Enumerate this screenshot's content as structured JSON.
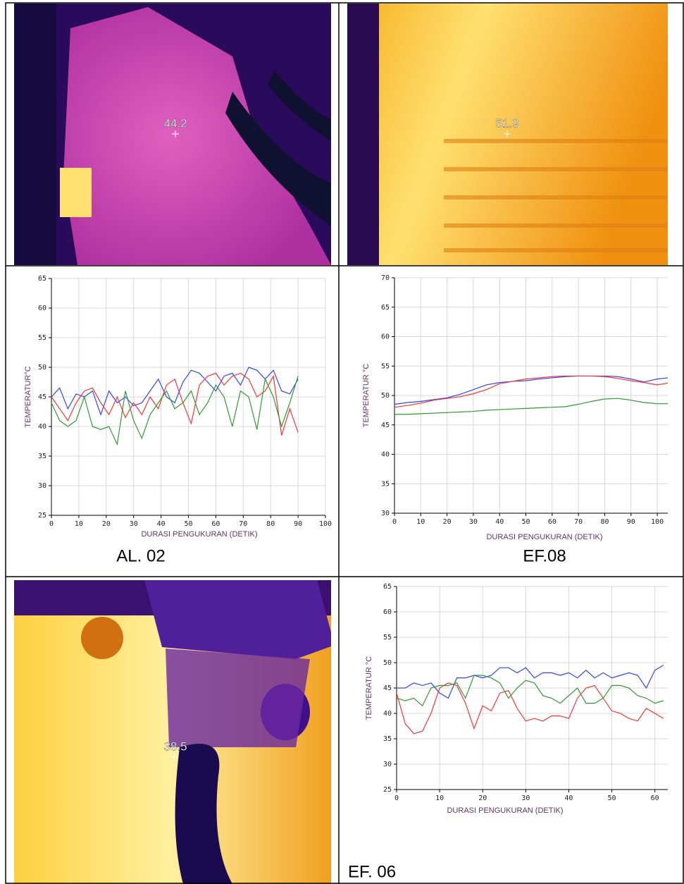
{
  "panels": {
    "images": [
      {
        "label": "44.2"
      },
      {
        "label": "51.9"
      },
      {
        "label": "38.5"
      }
    ]
  },
  "chart_data": [
    {
      "type": "line",
      "caption": "AL. 02",
      "x_label": "DURASI PENGUKURAN (DETIK)",
      "y_label": "TEMPERATUR°C",
      "x": [
        0,
        3,
        6,
        9,
        12,
        15,
        18,
        21,
        24,
        27,
        30,
        33,
        36,
        39,
        42,
        45,
        48,
        51,
        54,
        57,
        60,
        63,
        66,
        69,
        72,
        75,
        78,
        81,
        84,
        87,
        90
      ],
      "series": [
        {
          "color": "#3344ff",
          "values": [
            45,
            46.5,
            43,
            45.5,
            45,
            46,
            42,
            46,
            44,
            45,
            43.5,
            44,
            46,
            48,
            45,
            44,
            47.5,
            49.5,
            49,
            47.5,
            46,
            48.5,
            49,
            47,
            50,
            49.5,
            48,
            49.5,
            46,
            45.5,
            48
          ]
        },
        {
          "color": "#ff3333",
          "values": [
            45,
            43,
            41,
            44,
            46,
            46.5,
            44,
            42,
            45,
            41.5,
            44,
            42,
            45,
            43,
            47,
            48,
            44,
            40.5,
            47,
            48.5,
            49,
            47,
            48.5,
            49,
            48,
            45,
            46,
            48.5,
            38.5,
            43,
            39
          ]
        },
        {
          "color": "#339933",
          "values": [
            44,
            41,
            40,
            41,
            45,
            40,
            39.5,
            40,
            37,
            46,
            41,
            38,
            42,
            44,
            46,
            43,
            44,
            46,
            42,
            44,
            47,
            45,
            40,
            46,
            45,
            39.5,
            48,
            45,
            40,
            44,
            48.5
          ]
        }
      ],
      "xlim": [
        0,
        100
      ],
      "xticks": [
        0,
        10,
        20,
        30,
        40,
        50,
        60,
        70,
        80,
        90,
        100
      ],
      "ylim": [
        25,
        65
      ],
      "yticks": [
        25,
        30,
        35,
        40,
        45,
        50,
        55,
        60,
        65
      ],
      "grid": true
    },
    {
      "type": "line",
      "caption": "EF.08",
      "x_label": "DURASI PENGUKURAN (DETIK)",
      "y_label": "TEMPERATUR °C",
      "x": [
        0,
        5,
        10,
        15,
        20,
        25,
        30,
        35,
        40,
        45,
        50,
        55,
        60,
        65,
        70,
        75,
        80,
        85,
        90,
        95,
        100,
        104
      ],
      "series": [
        {
          "color": "#3344ff",
          "values": [
            48.5,
            48.8,
            49,
            49.3,
            49.6,
            50.2,
            51,
            51.8,
            52.2,
            52.4,
            52.5,
            52.8,
            53,
            53.2,
            53.3,
            53.3,
            53.3,
            53.2,
            52.8,
            52.3,
            52.8,
            53
          ]
        },
        {
          "color": "#ff3333",
          "values": [
            48,
            48.3,
            48.7,
            49.2,
            49.5,
            49.8,
            50.3,
            51,
            52,
            52.4,
            52.8,
            53,
            53.2,
            53.3,
            53.3,
            53.3,
            53.2,
            52.9,
            52.5,
            52.2,
            51.8,
            52.1
          ]
        },
        {
          "color": "#339933",
          "values": [
            46.8,
            46.8,
            46.9,
            47,
            47.1,
            47.2,
            47.3,
            47.5,
            47.6,
            47.7,
            47.8,
            47.9,
            48,
            48.1,
            48.5,
            49,
            49.4,
            49.5,
            49.2,
            48.8,
            48.6,
            48.6
          ]
        }
      ],
      "xlim": [
        0,
        104
      ],
      "xticks": [
        0,
        10,
        20,
        30,
        40,
        50,
        60,
        70,
        80,
        90,
        100
      ],
      "ylim": [
        30,
        70
      ],
      "yticks": [
        30,
        35,
        40,
        45,
        50,
        55,
        60,
        65,
        70
      ],
      "grid": true
    },
    {
      "type": "line",
      "caption": "EF. 06",
      "x_label": "DURASI PENGUKURAN  (DETIK)",
      "y_label": "TEMPERATUR °C",
      "x": [
        0,
        2,
        4,
        6,
        8,
        10,
        12,
        14,
        16,
        18,
        20,
        22,
        24,
        26,
        28,
        30,
        32,
        34,
        36,
        38,
        40,
        42,
        44,
        46,
        48,
        50,
        52,
        54,
        56,
        58,
        60,
        62
      ],
      "series": [
        {
          "color": "#3344ff",
          "values": [
            45,
            45,
            46,
            45.5,
            46,
            44,
            43,
            47,
            47,
            47.5,
            47,
            47.5,
            49,
            49,
            48,
            49,
            47,
            48,
            48,
            47.5,
            48,
            47,
            48.5,
            47,
            48,
            47,
            47.5,
            48,
            47.5,
            45,
            48.5,
            49.5
          ]
        },
        {
          "color": "#ff3333",
          "values": [
            44,
            38,
            36,
            36.5,
            40,
            45,
            46,
            45.5,
            42,
            37,
            41.5,
            40.5,
            44,
            44.5,
            41,
            38.5,
            39,
            38.5,
            39.5,
            39.5,
            39,
            43,
            45,
            45.5,
            43,
            40.5,
            40,
            39,
            38.5,
            41,
            40,
            39
          ]
        },
        {
          "color": "#339933",
          "values": [
            43,
            42.5,
            43,
            41.5,
            45,
            45.5,
            45.5,
            46,
            43,
            47.5,
            47.5,
            47,
            46,
            43,
            45,
            46.5,
            46,
            43.5,
            43,
            42,
            43.5,
            45,
            42,
            42,
            43,
            45.5,
            45.5,
            45,
            43.5,
            43,
            42,
            42.5
          ]
        }
      ],
      "xlim": [
        0,
        63
      ],
      "xticks": [
        0,
        10,
        20,
        30,
        40,
        50,
        60
      ],
      "ylim": [
        25,
        65
      ],
      "yticks": [
        25,
        30,
        35,
        40,
        45,
        50,
        55,
        60,
        65
      ],
      "grid": true
    }
  ]
}
